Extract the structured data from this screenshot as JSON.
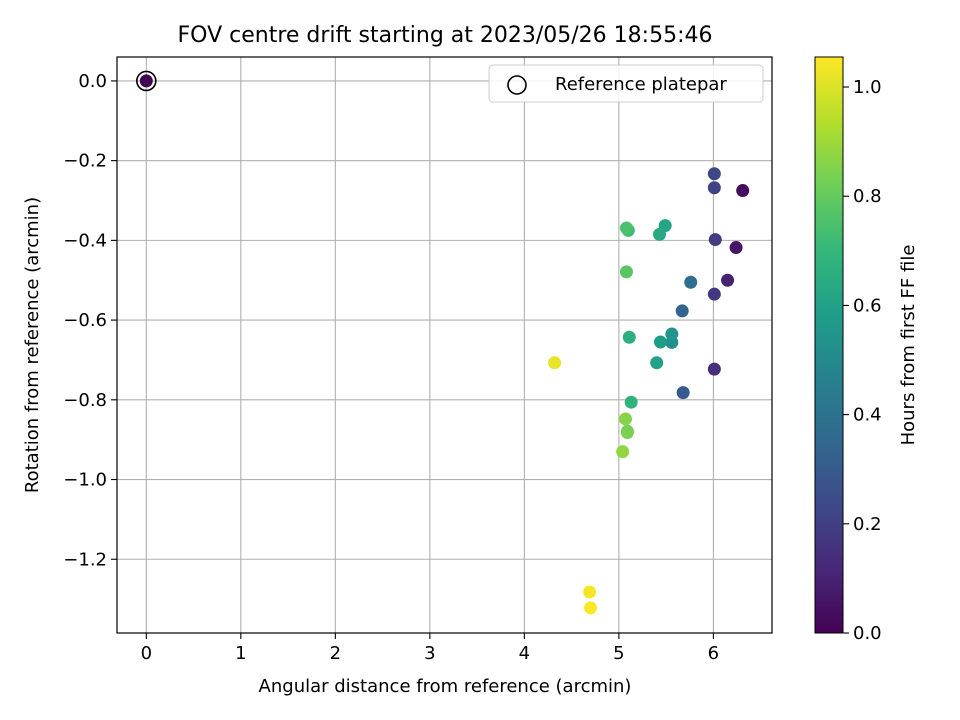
{
  "chart_data": {
    "type": "scatter",
    "title": "FOV centre drift starting at 2023/05/26 18:55:46",
    "xlabel": "Angular distance from reference (arcmin)",
    "ylabel": "Rotation from reference (arcmin)",
    "xlim": [
      -0.31,
      6.62
    ],
    "ylim": [
      -1.385,
      0.06
    ],
    "grid": true,
    "x_ticks": [
      0,
      1,
      2,
      3,
      4,
      5,
      6
    ],
    "x_tick_labels": [
      "0",
      "1",
      "2",
      "3",
      "4",
      "5",
      "6"
    ],
    "y_ticks": [
      0.0,
      -0.2,
      -0.4,
      -0.6,
      -0.8,
      -1.0,
      -1.2
    ],
    "y_tick_labels": [
      "0.0",
      "−0.2",
      "−0.4",
      "−0.6",
      "−0.8",
      "−1.0",
      "−1.2"
    ],
    "legend": {
      "placement": "top-right",
      "entries": [
        {
          "label": "Reference platepar",
          "marker": "open-circle"
        }
      ]
    },
    "reference_point": {
      "x": 0.0,
      "y": 0.0,
      "hours": 0.0
    },
    "colorbar": {
      "label": "Hours from first FF file",
      "colormap": "viridis",
      "range": [
        0.0,
        1.055
      ],
      "ticks": [
        0.0,
        0.2,
        0.4,
        0.6,
        0.8,
        1.0
      ],
      "tick_labels": [
        "0.0",
        "0.2",
        "0.4",
        "0.6",
        "0.8",
        "1.0"
      ],
      "stops": [
        "#440154",
        "#482878",
        "#3e4989",
        "#31688e",
        "#26828e",
        "#1f9e89",
        "#35b779",
        "#6ece58",
        "#b5de2b",
        "#fde725"
      ]
    },
    "points": [
      {
        "x": 6.31,
        "y": -0.275,
        "hours": 0.03
      },
      {
        "x": 6.24,
        "y": -0.418,
        "hours": 0.06
      },
      {
        "x": 6.15,
        "y": -0.5,
        "hours": 0.1
      },
      {
        "x": 6.01,
        "y": -0.723,
        "hours": 0.14
      },
      {
        "x": 6.01,
        "y": -0.535,
        "hours": 0.17
      },
      {
        "x": 6.02,
        "y": -0.398,
        "hours": 0.19
      },
      {
        "x": 6.01,
        "y": -0.268,
        "hours": 0.21
      },
      {
        "x": 6.01,
        "y": -0.233,
        "hours": 0.23
      },
      {
        "x": 5.68,
        "y": -0.782,
        "hours": 0.3
      },
      {
        "x": 5.67,
        "y": -0.577,
        "hours": 0.34
      },
      {
        "x": 5.76,
        "y": -0.505,
        "hours": 0.38
      },
      {
        "x": 5.56,
        "y": -0.656,
        "hours": 0.52
      },
      {
        "x": 5.56,
        "y": -0.635,
        "hours": 0.55
      },
      {
        "x": 5.44,
        "y": -0.655,
        "hours": 0.58
      },
      {
        "x": 5.4,
        "y": -0.707,
        "hours": 0.6
      },
      {
        "x": 5.49,
        "y": -0.363,
        "hours": 0.62
      },
      {
        "x": 5.43,
        "y": -0.385,
        "hours": 0.64
      },
      {
        "x": 5.11,
        "y": -0.643,
        "hours": 0.66
      },
      {
        "x": 5.13,
        "y": -0.806,
        "hours": 0.68
      },
      {
        "x": 5.1,
        "y": -0.375,
        "hours": 0.72
      },
      {
        "x": 5.08,
        "y": -0.369,
        "hours": 0.75
      },
      {
        "x": 5.08,
        "y": -0.479,
        "hours": 0.78
      },
      {
        "x": 5.09,
        "y": -0.879,
        "hours": 0.82
      },
      {
        "x": 5.09,
        "y": -0.882,
        "hours": 0.84
      },
      {
        "x": 5.07,
        "y": -0.848,
        "hours": 0.86
      },
      {
        "x": 5.04,
        "y": -0.93,
        "hours": 0.88
      },
      {
        "x": 4.32,
        "y": -0.707,
        "hours": 1.02
      },
      {
        "x": 4.69,
        "y": -1.282,
        "hours": 1.04
      },
      {
        "x": 4.7,
        "y": -1.322,
        "hours": 1.05
      }
    ]
  }
}
